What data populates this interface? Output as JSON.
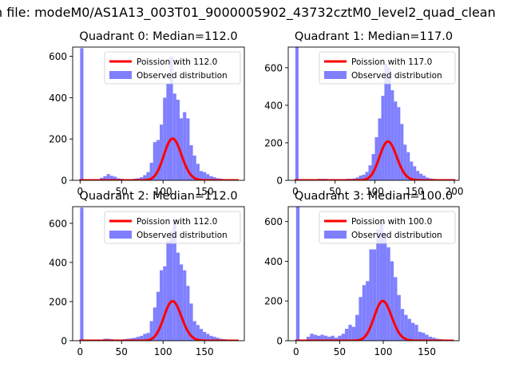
{
  "figure": {
    "suptitle": "n file: modeM0/AS1A13_003T01_9000005902_43732cztM0_level2_quad_clean"
  },
  "colors": {
    "poisson": "#ff0000",
    "hist": "#8080ff",
    "axis": "#000000"
  },
  "chart_data": [
    {
      "type": "bar",
      "title": "Quadrant 0: Median=112.0",
      "xlim": [
        -9,
        198
      ],
      "ylim": [
        0,
        645
      ],
      "xticks": [
        0,
        50,
        100,
        150
      ],
      "yticks": [
        0,
        200,
        400,
        600
      ],
      "legend": {
        "placement": "top-right",
        "entries": [
          "Poission with 112.0",
          "Observed distribution"
        ]
      },
      "histogram": {
        "name": "Observed distribution",
        "bin_width": 4,
        "bins": [
          [
            0,
            640
          ],
          [
            4,
            2
          ],
          [
            8,
            2
          ],
          [
            12,
            2
          ],
          [
            16,
            2
          ],
          [
            20,
            4
          ],
          [
            24,
            12
          ],
          [
            28,
            20
          ],
          [
            32,
            30
          ],
          [
            36,
            22
          ],
          [
            40,
            18
          ],
          [
            44,
            10
          ],
          [
            48,
            8
          ],
          [
            52,
            5
          ],
          [
            56,
            5
          ],
          [
            60,
            5
          ],
          [
            64,
            8
          ],
          [
            68,
            10
          ],
          [
            72,
            15
          ],
          [
            76,
            25
          ],
          [
            80,
            40
          ],
          [
            84,
            85
          ],
          [
            88,
            185
          ],
          [
            92,
            195
          ],
          [
            96,
            270
          ],
          [
            100,
            400
          ],
          [
            104,
            470
          ],
          [
            108,
            600
          ],
          [
            112,
            420
          ],
          [
            116,
            390
          ],
          [
            120,
            300
          ],
          [
            124,
            330
          ],
          [
            128,
            300
          ],
          [
            132,
            170
          ],
          [
            136,
            120
          ],
          [
            140,
            80
          ],
          [
            144,
            45
          ],
          [
            148,
            40
          ],
          [
            152,
            30
          ],
          [
            156,
            20
          ],
          [
            160,
            15
          ],
          [
            164,
            10
          ],
          [
            168,
            8
          ],
          [
            172,
            5
          ],
          [
            176,
            5
          ],
          [
            180,
            3
          ],
          [
            184,
            3
          ]
        ]
      },
      "poisson": {
        "name": "Poission with 112.0",
        "mean": 112.0,
        "scale": 5360,
        "x_range": [
          0,
          190
        ]
      }
    },
    {
      "type": "bar",
      "title": "Quadrant 1: Median=117.0",
      "xlim": [
        -9,
        206
      ],
      "ylim": [
        0,
        710
      ],
      "xticks": [
        0,
        50,
        100,
        150,
        200
      ],
      "yticks": [
        0,
        200,
        400,
        600
      ],
      "legend": {
        "placement": "top-right",
        "entries": [
          "Poission with 117.0",
          "Observed distribution"
        ]
      },
      "histogram": {
        "name": "Observed distribution",
        "bin_width": 4,
        "bins": [
          [
            0,
            710
          ],
          [
            4,
            3
          ],
          [
            8,
            3
          ],
          [
            12,
            3
          ],
          [
            16,
            3
          ],
          [
            20,
            5
          ],
          [
            24,
            5
          ],
          [
            28,
            8
          ],
          [
            32,
            8
          ],
          [
            36,
            8
          ],
          [
            40,
            5
          ],
          [
            44,
            5
          ],
          [
            48,
            5
          ],
          [
            52,
            5
          ],
          [
            56,
            5
          ],
          [
            60,
            5
          ],
          [
            64,
            8
          ],
          [
            68,
            8
          ],
          [
            72,
            10
          ],
          [
            76,
            15
          ],
          [
            80,
            25
          ],
          [
            84,
            30
          ],
          [
            88,
            45
          ],
          [
            92,
            80
          ],
          [
            96,
            140
          ],
          [
            100,
            230
          ],
          [
            104,
            330
          ],
          [
            108,
            450
          ],
          [
            112,
            620
          ],
          [
            116,
            600
          ],
          [
            120,
            480
          ],
          [
            124,
            420
          ],
          [
            128,
            390
          ],
          [
            132,
            300
          ],
          [
            136,
            190
          ],
          [
            140,
            150
          ],
          [
            144,
            100
          ],
          [
            148,
            75
          ],
          [
            152,
            50
          ],
          [
            156,
            35
          ],
          [
            160,
            25
          ],
          [
            164,
            15
          ],
          [
            168,
            10
          ],
          [
            172,
            8
          ],
          [
            176,
            5
          ],
          [
            180,
            5
          ],
          [
            184,
            3
          ],
          [
            188,
            3
          ],
          [
            192,
            2
          ],
          [
            196,
            2
          ]
        ]
      },
      "poisson": {
        "name": "Poission with 117.0",
        "mean": 117.0,
        "scale": 5610,
        "x_range": [
          0,
          200
        ]
      }
    },
    {
      "type": "bar",
      "title": "Quadrant 2: Median=112.0",
      "xlim": [
        -9,
        198
      ],
      "ylim": [
        0,
        685
      ],
      "xticks": [
        0,
        50,
        100,
        150
      ],
      "yticks": [
        0,
        200,
        400,
        600
      ],
      "legend": {
        "placement": "top-right",
        "entries": [
          "Poission with 112.0",
          "Observed distribution"
        ]
      },
      "histogram": {
        "name": "Observed distribution",
        "bin_width": 4,
        "bins": [
          [
            0,
            680
          ],
          [
            4,
            3
          ],
          [
            8,
            3
          ],
          [
            12,
            3
          ],
          [
            16,
            3
          ],
          [
            20,
            4
          ],
          [
            24,
            5
          ],
          [
            28,
            10
          ],
          [
            32,
            10
          ],
          [
            36,
            8
          ],
          [
            40,
            5
          ],
          [
            44,
            5
          ],
          [
            48,
            5
          ],
          [
            52,
            8
          ],
          [
            56,
            10
          ],
          [
            60,
            12
          ],
          [
            64,
            15
          ],
          [
            68,
            20
          ],
          [
            72,
            25
          ],
          [
            76,
            35
          ],
          [
            80,
            40
          ],
          [
            84,
            100
          ],
          [
            88,
            170
          ],
          [
            92,
            250
          ],
          [
            96,
            360
          ],
          [
            100,
            380
          ],
          [
            104,
            510
          ],
          [
            108,
            560
          ],
          [
            112,
            620
          ],
          [
            116,
            450
          ],
          [
            120,
            390
          ],
          [
            124,
            360
          ],
          [
            128,
            280
          ],
          [
            132,
            190
          ],
          [
            136,
            100
          ],
          [
            140,
            80
          ],
          [
            144,
            60
          ],
          [
            148,
            45
          ],
          [
            152,
            35
          ],
          [
            156,
            25
          ],
          [
            160,
            20
          ],
          [
            164,
            15
          ],
          [
            168,
            10
          ],
          [
            172,
            8
          ],
          [
            176,
            5
          ],
          [
            180,
            3
          ],
          [
            184,
            3
          ]
        ]
      },
      "poisson": {
        "name": "Poission with 112.0",
        "mean": 112.0,
        "scale": 5360,
        "x_range": [
          0,
          190
        ]
      }
    },
    {
      "type": "bar",
      "title": "Quadrant 3: Median=100.0",
      "xlim": [
        -9,
        187
      ],
      "ylim": [
        0,
        675
      ],
      "xticks": [
        0,
        50,
        100,
        150
      ],
      "yticks": [
        0,
        200,
        400,
        600
      ],
      "legend": {
        "placement": "top-right",
        "entries": [
          "Poission with 100.0",
          "Observed distribution"
        ]
      },
      "histogram": {
        "name": "Observed distribution",
        "bin_width": 4,
        "bins": [
          [
            0,
            675
          ],
          [
            4,
            3
          ],
          [
            8,
            5
          ],
          [
            12,
            20
          ],
          [
            16,
            35
          ],
          [
            20,
            30
          ],
          [
            24,
            25
          ],
          [
            28,
            30
          ],
          [
            32,
            25
          ],
          [
            36,
            20
          ],
          [
            40,
            25
          ],
          [
            44,
            15
          ],
          [
            48,
            25
          ],
          [
            52,
            35
          ],
          [
            56,
            60
          ],
          [
            60,
            80
          ],
          [
            64,
            70
          ],
          [
            68,
            130
          ],
          [
            72,
            220
          ],
          [
            76,
            280
          ],
          [
            80,
            300
          ],
          [
            84,
            460
          ],
          [
            88,
            460
          ],
          [
            92,
            560
          ],
          [
            96,
            600
          ],
          [
            100,
            540
          ],
          [
            104,
            470
          ],
          [
            108,
            400
          ],
          [
            112,
            320
          ],
          [
            116,
            230
          ],
          [
            120,
            160
          ],
          [
            124,
            130
          ],
          [
            128,
            110
          ],
          [
            132,
            90
          ],
          [
            136,
            80
          ],
          [
            140,
            45
          ],
          [
            144,
            40
          ],
          [
            148,
            30
          ],
          [
            152,
            20
          ],
          [
            156,
            15
          ],
          [
            160,
            10
          ],
          [
            164,
            8
          ],
          [
            168,
            5
          ],
          [
            172,
            3
          ]
        ]
      },
      "poisson": {
        "name": "Poission with 100.0",
        "mean": 100.0,
        "scale": 5010,
        "x_range": [
          0,
          180
        ]
      }
    }
  ]
}
